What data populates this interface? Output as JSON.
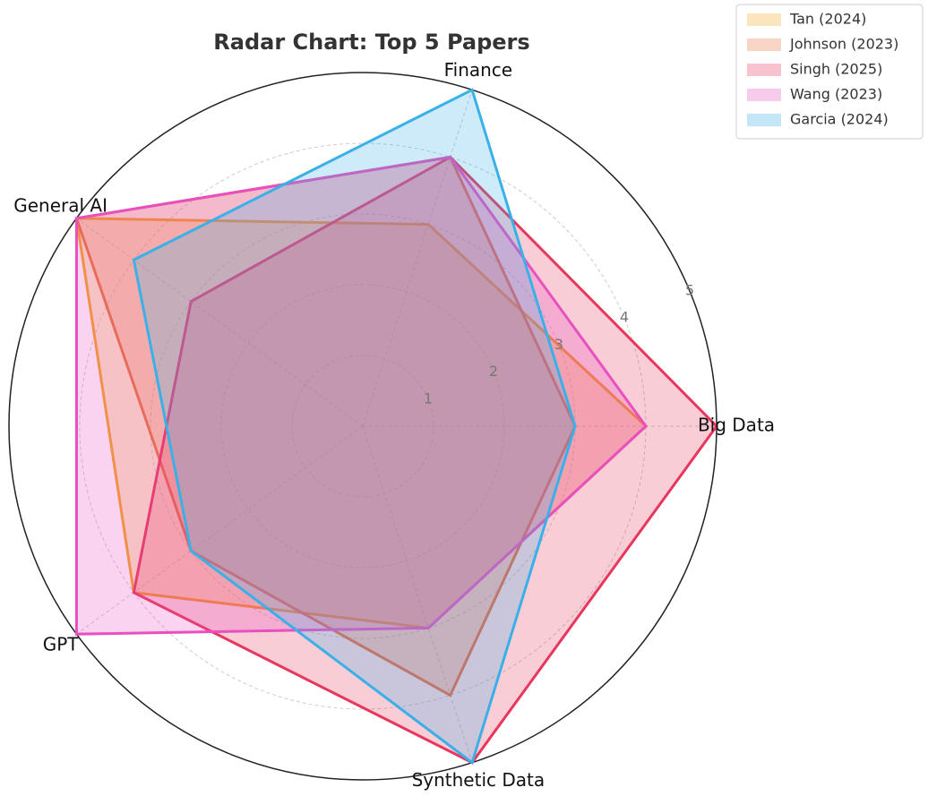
{
  "chart_data": {
    "type": "radar",
    "title": "Radar Chart: Top 5 Papers",
    "categories": [
      "Big Data",
      "Finance",
      "General AI",
      "GPT",
      "Synthetic Data"
    ],
    "ylim": [
      0,
      5
    ],
    "yticks": [
      1,
      2,
      3,
      4,
      5
    ],
    "grid": true,
    "legend": "upper right",
    "series": [
      {
        "name": "Tan (2024)",
        "color": "#f5a623",
        "values": [
          4,
          3,
          5,
          4,
          3
        ]
      },
      {
        "name": "Johnson (2023)",
        "color": "#e8743b",
        "values": [
          3,
          4,
          5,
          3,
          4
        ]
      },
      {
        "name": "Singh (2025)",
        "color": "#e8365d",
        "values": [
          5,
          4,
          3,
          4,
          5
        ]
      },
      {
        "name": "Wang (2023)",
        "color": "#e84fbf",
        "values": [
          4,
          4,
          5,
          5,
          3
        ]
      },
      {
        "name": "Garcia (2024)",
        "color": "#3bb0e8",
        "values": [
          3,
          5,
          4,
          3,
          5
        ]
      }
    ]
  }
}
